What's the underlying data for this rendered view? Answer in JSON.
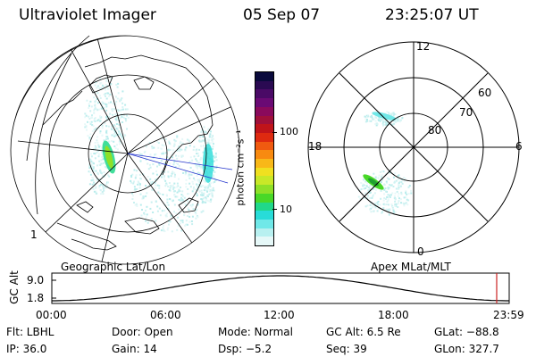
{
  "header": {
    "title": "Ultraviolet Imager",
    "date": "05 Sep 07",
    "time": "23:25:07 UT"
  },
  "colorbar": {
    "unit_label": "photon cm⁻²s⁻¹",
    "ticks": [
      "100",
      "10"
    ],
    "colors": [
      "#0a0a3c",
      "#2a0a52",
      "#4a0a66",
      "#6a0a74",
      "#8a0a5c",
      "#a0103a",
      "#c0141a",
      "#de2a10",
      "#f05a10",
      "#f88a10",
      "#f8b818",
      "#f0e020",
      "#c8e828",
      "#8ee028",
      "#48d828",
      "#20d88a",
      "#28dcd8",
      "#70e8e8",
      "#b8f0f0",
      "#e6f8f8"
    ]
  },
  "geo_panel": {
    "label": "Geographic Lat/Lon",
    "tick_label": "1"
  },
  "polar_panel": {
    "label": "Apex MLat/MLT",
    "lat_labels": [
      "80",
      "70",
      "60"
    ],
    "mlt_labels": {
      "top": "12",
      "bottom": "0",
      "left": "18",
      "right": "6"
    }
  },
  "altitude_plot": {
    "axis_label": "GC Alt",
    "y_ticks": [
      "9.0",
      "1.8"
    ],
    "x_ticks": [
      "00:00",
      "06:00",
      "12:00",
      "18:00",
      "23:59"
    ],
    "marker_color": "#cc2222"
  },
  "info": {
    "flt": "Flt: LBHL",
    "door": "Door: Open",
    "mode": "Mode: Normal",
    "gc_alt": "GC Alt: 6.5 Re",
    "glat": "GLat: −88.8",
    "ip": "IP: 36.0",
    "gain": "Gain: 14",
    "dsp": "Dsp:    −5.2",
    "seq": "Seq: 39",
    "glon": "GLon: 327.7"
  }
}
